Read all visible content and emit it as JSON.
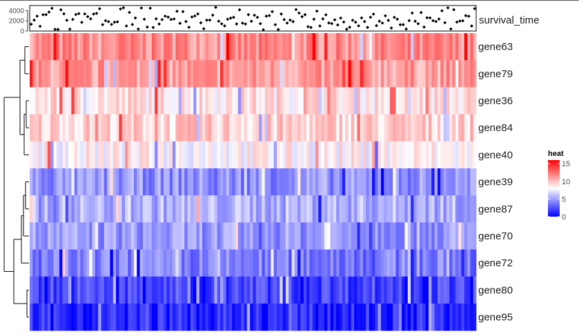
{
  "chart_data": {
    "type": "heatmap",
    "annotation": {
      "name": "survival_time",
      "type": "scatter",
      "yticks": [
        0,
        2000,
        4000
      ],
      "ylim": [
        0,
        5000
      ]
    },
    "rows": [
      "gene63",
      "gene79",
      "gene36",
      "gene84",
      "gene40",
      "gene39",
      "gene87",
      "gene70",
      "gene72",
      "gene80",
      "gene95"
    ],
    "row_means": [
      11.5,
      11.0,
      8.9,
      9.4,
      8.2,
      4.6,
      5.6,
      4.8,
      3.9,
      2.2,
      1.2
    ],
    "columns": 150,
    "legend": {
      "title": "heat",
      "ticks": [
        0,
        5,
        10,
        15
      ],
      "range": [
        0,
        16
      ],
      "colors": [
        "#0000ff",
        "#ffffff",
        "#ff0000"
      ],
      "position": "right"
    },
    "dendrogram": "rows, left"
  }
}
